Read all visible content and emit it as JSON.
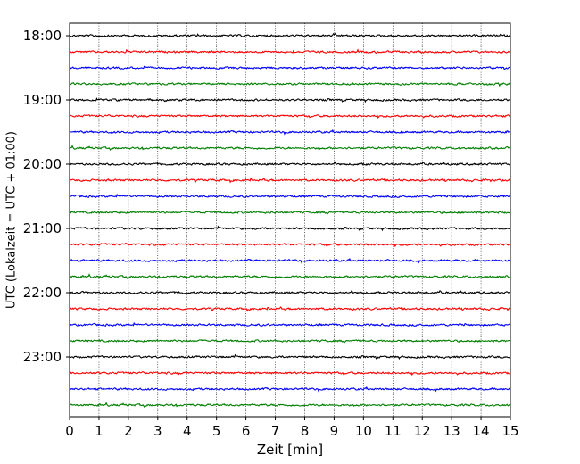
{
  "chart_data": {
    "type": "line",
    "title": "",
    "xlabel": "Zeit  [min]",
    "ylabel": "UTC (Lokalzeit = UTC + 01:00)",
    "xlim": [
      0,
      15
    ],
    "x_ticks": [
      "0",
      "1",
      "2",
      "3",
      "4",
      "5",
      "6",
      "7",
      "8",
      "9",
      "10",
      "11",
      "12",
      "13",
      "14",
      "15"
    ],
    "y_tick_labels": [
      "18:00",
      "19:00",
      "20:00",
      "21:00",
      "22:00",
      "23:00"
    ],
    "grid": "vertical dotted at each minute",
    "legend": "none",
    "trace_interval_min": 15,
    "trace_start": "18:00",
    "trace_count": 24,
    "trace_colors": [
      "#000000",
      "#ff0000",
      "#0000ff",
      "#007f00"
    ]
  }
}
